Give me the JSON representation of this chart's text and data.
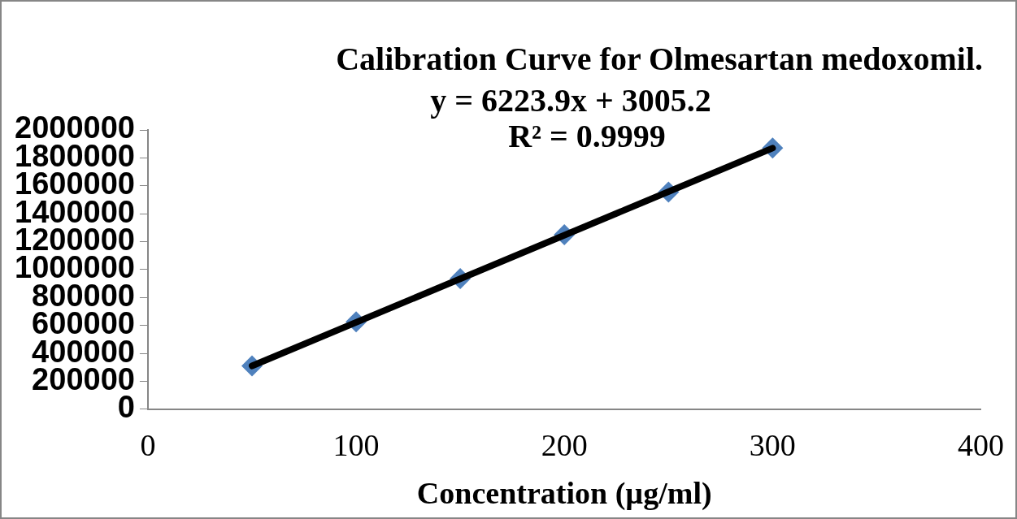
{
  "chart_data": {
    "type": "scatter",
    "title": "Calibration Curve for Olmesartan medoxomil.",
    "xlabel": "Concentration (µg/ml)",
    "annotations": [
      "y = 6223.9x + 3005.2",
      "R² = 0.9999"
    ],
    "series": [
      {
        "type": "scatter",
        "color": "#4f81bd",
        "x": [
          50,
          100,
          150,
          200,
          250,
          300
        ],
        "values": [
          310000,
          625000,
          935000,
          1250000,
          1555000,
          1870000
        ],
        "marker": "diamond"
      },
      {
        "type": "line",
        "color": "#000000",
        "x": [
          50,
          300
        ],
        "values": [
          310000,
          1870000
        ],
        "marker": "none"
      }
    ],
    "xlim": [
      0,
      400
    ],
    "xticks": [
      0,
      100,
      200,
      300,
      400
    ],
    "ylim": [
      0,
      2000000
    ],
    "yticks": [
      0,
      200000,
      400000,
      600000,
      800000,
      1000000,
      1200000,
      1400000,
      1600000,
      1800000,
      2000000
    ],
    "grid": false,
    "legend": false
  }
}
